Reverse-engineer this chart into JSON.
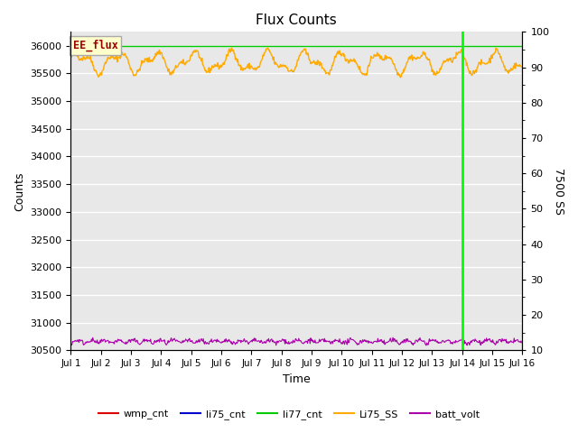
{
  "title": "Flux Counts",
  "xlabel": "Time",
  "ylabel_left": "Counts",
  "ylabel_right": "7500 SS",
  "annotation_text": "EE_flux",
  "annotation_bg": "#ffffcc",
  "annotation_border": "#aaaaaa",
  "annotation_text_color": "#990000",
  "ylim_left": [
    30500,
    36250
  ],
  "ylim_right": [
    10,
    100
  ],
  "yticks_left": [
    30500,
    31000,
    31500,
    32000,
    32500,
    33000,
    33500,
    34000,
    34500,
    35000,
    35500,
    36000
  ],
  "yticks_right": [
    10,
    20,
    30,
    40,
    50,
    60,
    70,
    80,
    90,
    100
  ],
  "xticklabels": [
    "Jul 1",
    "Jul 2",
    "Jul 3",
    "Jul 4",
    "Jul 5",
    "Jul 6",
    "Jul 7",
    "Jul 8",
    "Jul 9",
    "Jul 10",
    "Jul 11",
    "Jul 12",
    "Jul 13",
    "Jul 14",
    "Jul 15",
    "Jul 16"
  ],
  "n_days": 15,
  "vline_day": 13,
  "vline_color": "#00ff00",
  "li77_cnt_value": 36000,
  "li77_cnt_color": "#00cc00",
  "Li75_SS_mean": 35700,
  "Li75_SS_color": "#ffaa00",
  "batt_volt_mean": 30620,
  "batt_volt_color": "#aa00aa",
  "bg_color": "#e8e8e8",
  "grid_color": "#ffffff",
  "legend_entries": [
    {
      "label": "wmp_cnt",
      "color": "#dd0000",
      "linestyle": "-"
    },
    {
      "label": "li75_cnt",
      "color": "#0000cc",
      "linestyle": "-"
    },
    {
      "label": "li77_cnt",
      "color": "#00cc00",
      "linestyle": "-"
    },
    {
      "label": "Li75_SS",
      "color": "#ffaa00",
      "linestyle": "-"
    },
    {
      "label": "batt_volt",
      "color": "#aa00aa",
      "linestyle": "-"
    }
  ]
}
